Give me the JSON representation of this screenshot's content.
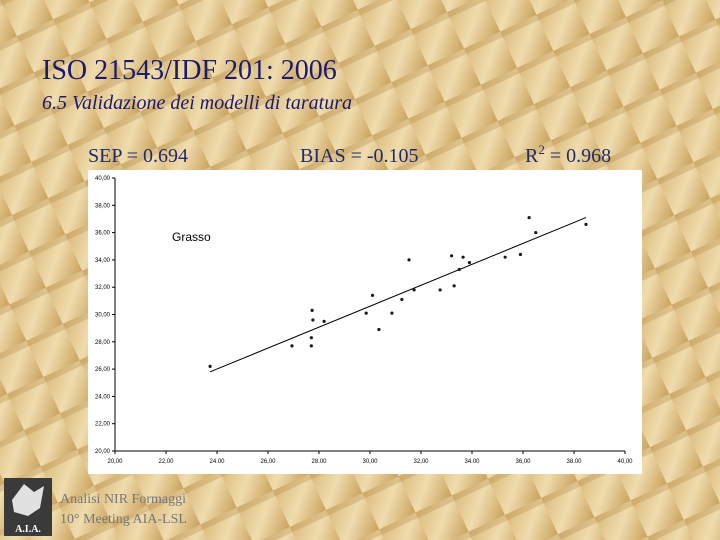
{
  "slide": {
    "title": "ISO 21543/IDF 201: 2006",
    "subtitle": "6.5  Validazione dei modelli di taratura",
    "stats": {
      "sep": "SEP = 0.694",
      "bias": "BIAS = -0.105",
      "r2_base": "R",
      "r2_exp": "2",
      "r2_rest": " = 0.968"
    },
    "footer": [
      "Analisi NIR Formaggi",
      "10° Meeting AIA-LSL"
    ],
    "logo": "A.I.A."
  },
  "chart_data": {
    "type": "scatter",
    "annotation": "Grasso",
    "color": "#1a1a1a",
    "x": [
      23.73,
      26.94,
      27.73,
      27.76,
      27.7,
      27.7,
      28.2,
      29.85,
      30.1,
      30.35,
      30.86,
      31.25,
      31.53,
      31.73,
      32.75,
      33.2,
      33.3,
      33.5,
      33.65,
      33.9,
      35.3,
      35.9,
      36.24,
      36.5,
      38.47
    ],
    "values": [
      26.2,
      27.7,
      30.3,
      29.6,
      28.3,
      27.7,
      29.5,
      30.1,
      31.4,
      28.9,
      30.1,
      31.1,
      34.0,
      31.8,
      31.8,
      34.3,
      32.1,
      33.3,
      34.2,
      33.8,
      34.2,
      34.4,
      37.1,
      36.0,
      36.6
    ],
    "fit_line": {
      "x": [
        23.73,
        38.47
      ],
      "values": [
        25.8,
        37.1
      ],
      "color": "#000000"
    },
    "xlim": [
      20,
      40
    ],
    "ylim": [
      20,
      40
    ],
    "xticks": [
      {
        "value": 20,
        "label": "20,00"
      },
      {
        "value": 22,
        "label": "22,00"
      },
      {
        "value": 24,
        "label": "24.00"
      },
      {
        "value": 26,
        "label": "26,00"
      },
      {
        "value": 28,
        "label": "28.00"
      },
      {
        "value": 30,
        "label": "30,00"
      },
      {
        "value": 32,
        "label": "32,00"
      },
      {
        "value": 34,
        "label": "34.00"
      },
      {
        "value": 36,
        "label": "36,00"
      },
      {
        "value": 38,
        "label": "38.00"
      },
      {
        "value": 40,
        "label": "40,00"
      }
    ],
    "yticks": [
      {
        "value": 20,
        "label": "20,00"
      },
      {
        "value": 22,
        "label": "22,00"
      },
      {
        "value": 24,
        "label": "24,00"
      },
      {
        "value": 26,
        "label": "26,00"
      },
      {
        "value": 28,
        "label": "28,00"
      },
      {
        "value": 30,
        "label": "30,00"
      },
      {
        "value": 32,
        "label": "32,00"
      },
      {
        "value": 34,
        "label": "34,00"
      },
      {
        "value": 36,
        "label": "36,00"
      },
      {
        "value": 38,
        "label": "38,00"
      },
      {
        "value": 40,
        "label": "40,00"
      }
    ]
  }
}
